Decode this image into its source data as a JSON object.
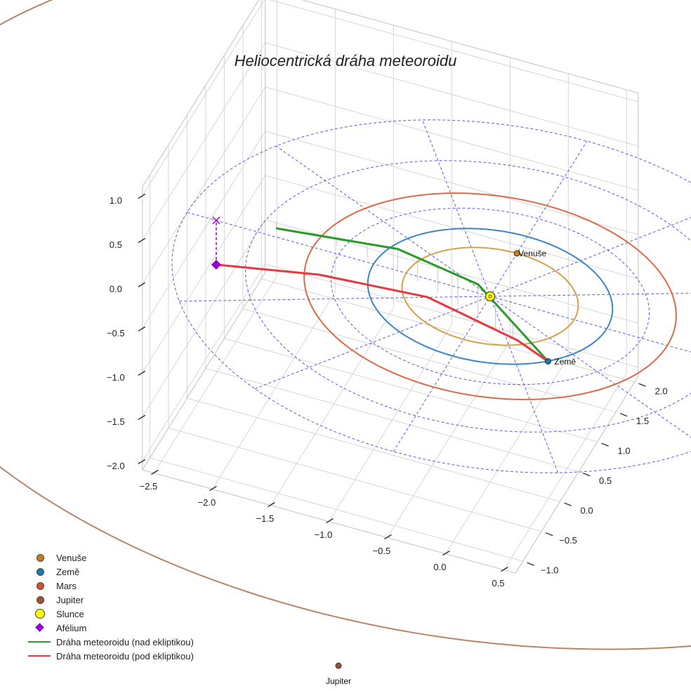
{
  "title": "Heliocentrická dráha meteoroidu",
  "chart_data": {
    "type": "3d-line",
    "title": "Heliocentrická dráha meteoroidu",
    "grid": true,
    "legend_position": "bottom-left",
    "axes": {
      "x_ticks": [
        -2.5,
        -2.0,
        -1.5,
        -1.0,
        -0.5,
        0.0,
        0.5
      ],
      "x_tick_labels": [
        "−2.5",
        "−2.0",
        "−1.5",
        "−1.0",
        "−0.5",
        "0.0",
        "0.5"
      ],
      "y_ticks": [
        -1.0,
        -0.5,
        0.0,
        0.5,
        1.0,
        1.5,
        2.0
      ],
      "y_tick_labels": [
        "−1.0",
        "−0.5",
        "0.0",
        "0.5",
        "1.0",
        "1.5",
        "2.0"
      ],
      "z_ticks": [
        -2.0,
        -1.5,
        -1.0,
        -0.5,
        0.0,
        0.5,
        1.0
      ],
      "z_tick_labels": [
        "−2.0",
        "−1.5",
        "−1.0",
        "−0.5",
        "0.0",
        "0.5",
        "1.0"
      ]
    },
    "bodies": [
      {
        "name": "Venuše",
        "label": "Venuše",
        "x": 0.0,
        "y": 0.72,
        "z": 0,
        "orbit_radius": 0.72,
        "color": "#c87f1a",
        "orbit_color": "#d4a14a"
      },
      {
        "name": "Země",
        "label": "Země",
        "x": 0.72,
        "y": -0.7,
        "z": 0,
        "orbit_radius": 1.0,
        "color": "#1f77b4",
        "orbit_color": "#3a86c8"
      },
      {
        "name": "Mars",
        "label": "",
        "orbit_radius": 1.52,
        "color": "#d2542a",
        "orbit_color": "#dd6a45"
      },
      {
        "name": "Jupiter",
        "label": "Jupiter",
        "orbit_radius": 5.2,
        "color": "#a0522d",
        "orbit_color": "#b8856a"
      },
      {
        "name": "Slunce",
        "label": "",
        "x": 0,
        "y": 0,
        "z": 0,
        "color": "#ffff00"
      }
    ],
    "aphelion": {
      "name": "Afélium",
      "x": -2.35,
      "y": 0.0,
      "z": -0.5,
      "color": "#9400d3"
    },
    "aphelion_projection": {
      "x": -2.35,
      "y": 0.0,
      "z": 0.0
    },
    "series": [
      {
        "name": "Dráha meteoroidu (nad ekliptikou)",
        "color": "#2a9a2a",
        "points": [
          [
            -1.9,
            0.2,
            -0.06
          ],
          [
            -0.8,
            0.02,
            0.23
          ],
          [
            0.0,
            -0.33,
            0.36
          ],
          [
            0.72,
            -0.7,
            0.0
          ]
        ]
      },
      {
        "name": "Dráha meteoroidu (pod ekliptikou)",
        "color": "#e8383d",
        "points": [
          [
            -2.35,
            0.0,
            -0.5
          ],
          [
            -1.5,
            0.1,
            -0.37
          ],
          [
            -0.5,
            -0.12,
            -0.11
          ],
          [
            0.4,
            -0.52,
            0.0
          ],
          [
            0.72,
            -0.7,
            0.0
          ]
        ]
      }
    ]
  },
  "legend": [
    {
      "label": "Venuše",
      "kind": "dot",
      "color": "#c87f1a"
    },
    {
      "label": "Země",
      "kind": "dot",
      "color": "#1f77b4"
    },
    {
      "label": "Mars",
      "kind": "dot",
      "color": "#d2542a"
    },
    {
      "label": "Jupiter",
      "kind": "dot",
      "color": "#a0522d"
    },
    {
      "label": "Slunce",
      "kind": "sun",
      "color": "#ffff00"
    },
    {
      "label": "Afélium",
      "kind": "diamond",
      "color": "#9400d3"
    },
    {
      "label": "Dráha meteoroidu (nad ekliptikou)",
      "kind": "line",
      "color": "#2a9a2a"
    },
    {
      "label": "Dráha meteoroidu (pod ekliptikou)",
      "kind": "line",
      "color": "#e8383d"
    }
  ]
}
